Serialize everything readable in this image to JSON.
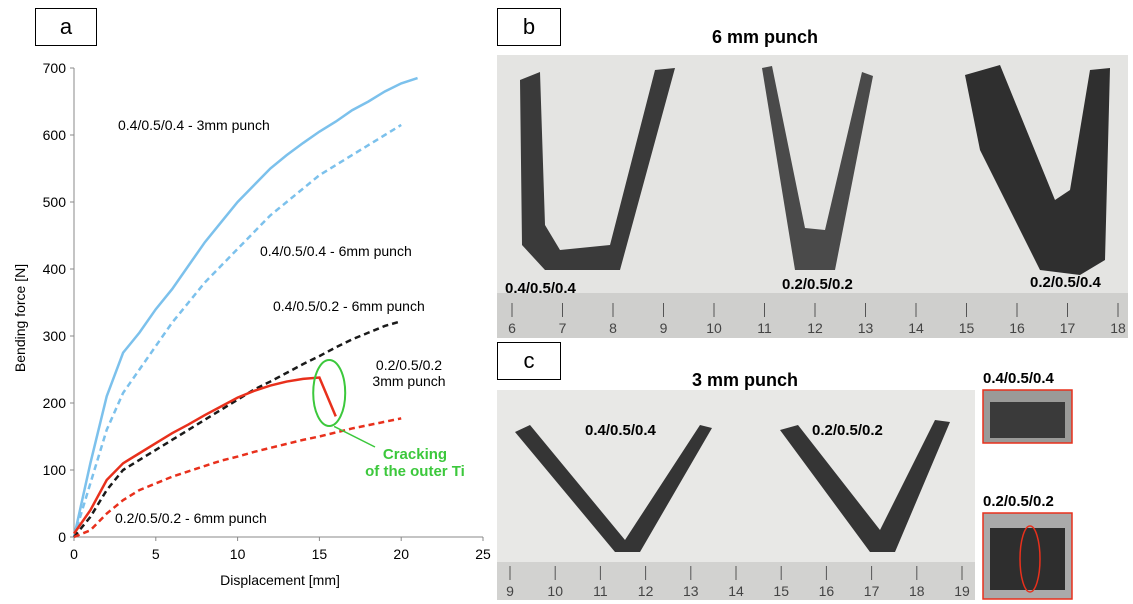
{
  "panels": {
    "a": "a",
    "b": "b",
    "c": "c"
  },
  "chart_data": {
    "type": "line",
    "x_label": "Displacement [mm]",
    "y_label": "Bending force [N]",
    "x": [
      0,
      1,
      2,
      3,
      4,
      5,
      6,
      7,
      8,
      9,
      10,
      11,
      12,
      13,
      14,
      15,
      16,
      17,
      18,
      19,
      20,
      21
    ],
    "xlim": [
      0,
      25
    ],
    "xticks": [
      0,
      5,
      10,
      15,
      20,
      25
    ],
    "ylim": [
      0,
      700
    ],
    "yticks": [
      0,
      100,
      200,
      300,
      400,
      500,
      600,
      700
    ],
    "series": [
      {
        "name": "0.4/0.5/0.4 - 3mm punch",
        "color": "#7cc1ec",
        "dashed": false,
        "values": [
          0,
          110,
          210,
          275,
          305,
          340,
          370,
          405,
          440,
          470,
          500,
          525,
          550,
          570,
          588,
          605,
          620,
          637,
          650,
          665,
          677,
          685
        ]
      },
      {
        "name": "0.4/0.5/0.4 - 6mm punch",
        "color": "#7cc1ec",
        "dashed": true,
        "values": [
          0,
          80,
          160,
          215,
          250,
          285,
          320,
          350,
          380,
          405,
          430,
          455,
          480,
          500,
          520,
          540,
          555,
          570,
          585,
          600,
          615,
          null
        ]
      },
      {
        "name": "0.4/0.5/0.2 - 6mm punch",
        "color": "#1a1a1a",
        "dashed": true,
        "values": [
          0,
          30,
          70,
          100,
          115,
          130,
          145,
          160,
          175,
          190,
          205,
          220,
          232,
          245,
          258,
          270,
          283,
          295,
          305,
          315,
          322,
          null
        ]
      },
      {
        "name": "0.2/0.5/0.2\n3mm punch",
        "color": "#e8301c",
        "dashed": false,
        "values": [
          5,
          40,
          85,
          110,
          125,
          140,
          155,
          168,
          182,
          195,
          208,
          218,
          226,
          232,
          236,
          238,
          180,
          null,
          null,
          null,
          null,
          null
        ]
      },
      {
        "name": "0.2/0.5/0.2 - 6mm punch",
        "color": "#e8301c",
        "dashed": true,
        "values": [
          0,
          10,
          35,
          55,
          70,
          80,
          90,
          98,
          106,
          114,
          120,
          127,
          133,
          139,
          145,
          150,
          156,
          162,
          167,
          172,
          177,
          null
        ]
      }
    ],
    "annotation": "Cracking\nof the outer Ti"
  },
  "panel_b": {
    "title": "6 mm punch",
    "samples": [
      "0.4/0.5/0.4",
      "0.2/0.5/0.2",
      "0.2/0.5/0.4"
    ],
    "ruler": [
      6,
      7,
      8,
      9,
      10,
      11,
      12,
      13,
      14,
      15,
      16,
      17,
      18
    ]
  },
  "panel_c": {
    "title": "3 mm punch",
    "samples": [
      "0.4/0.5/0.4",
      "0.2/0.5/0.2"
    ],
    "ruler": [
      9,
      10,
      11,
      12,
      13,
      14,
      15,
      16,
      17,
      18,
      19
    ],
    "insets": [
      "0.4/0.5/0.4",
      "0.2/0.5/0.2"
    ]
  }
}
